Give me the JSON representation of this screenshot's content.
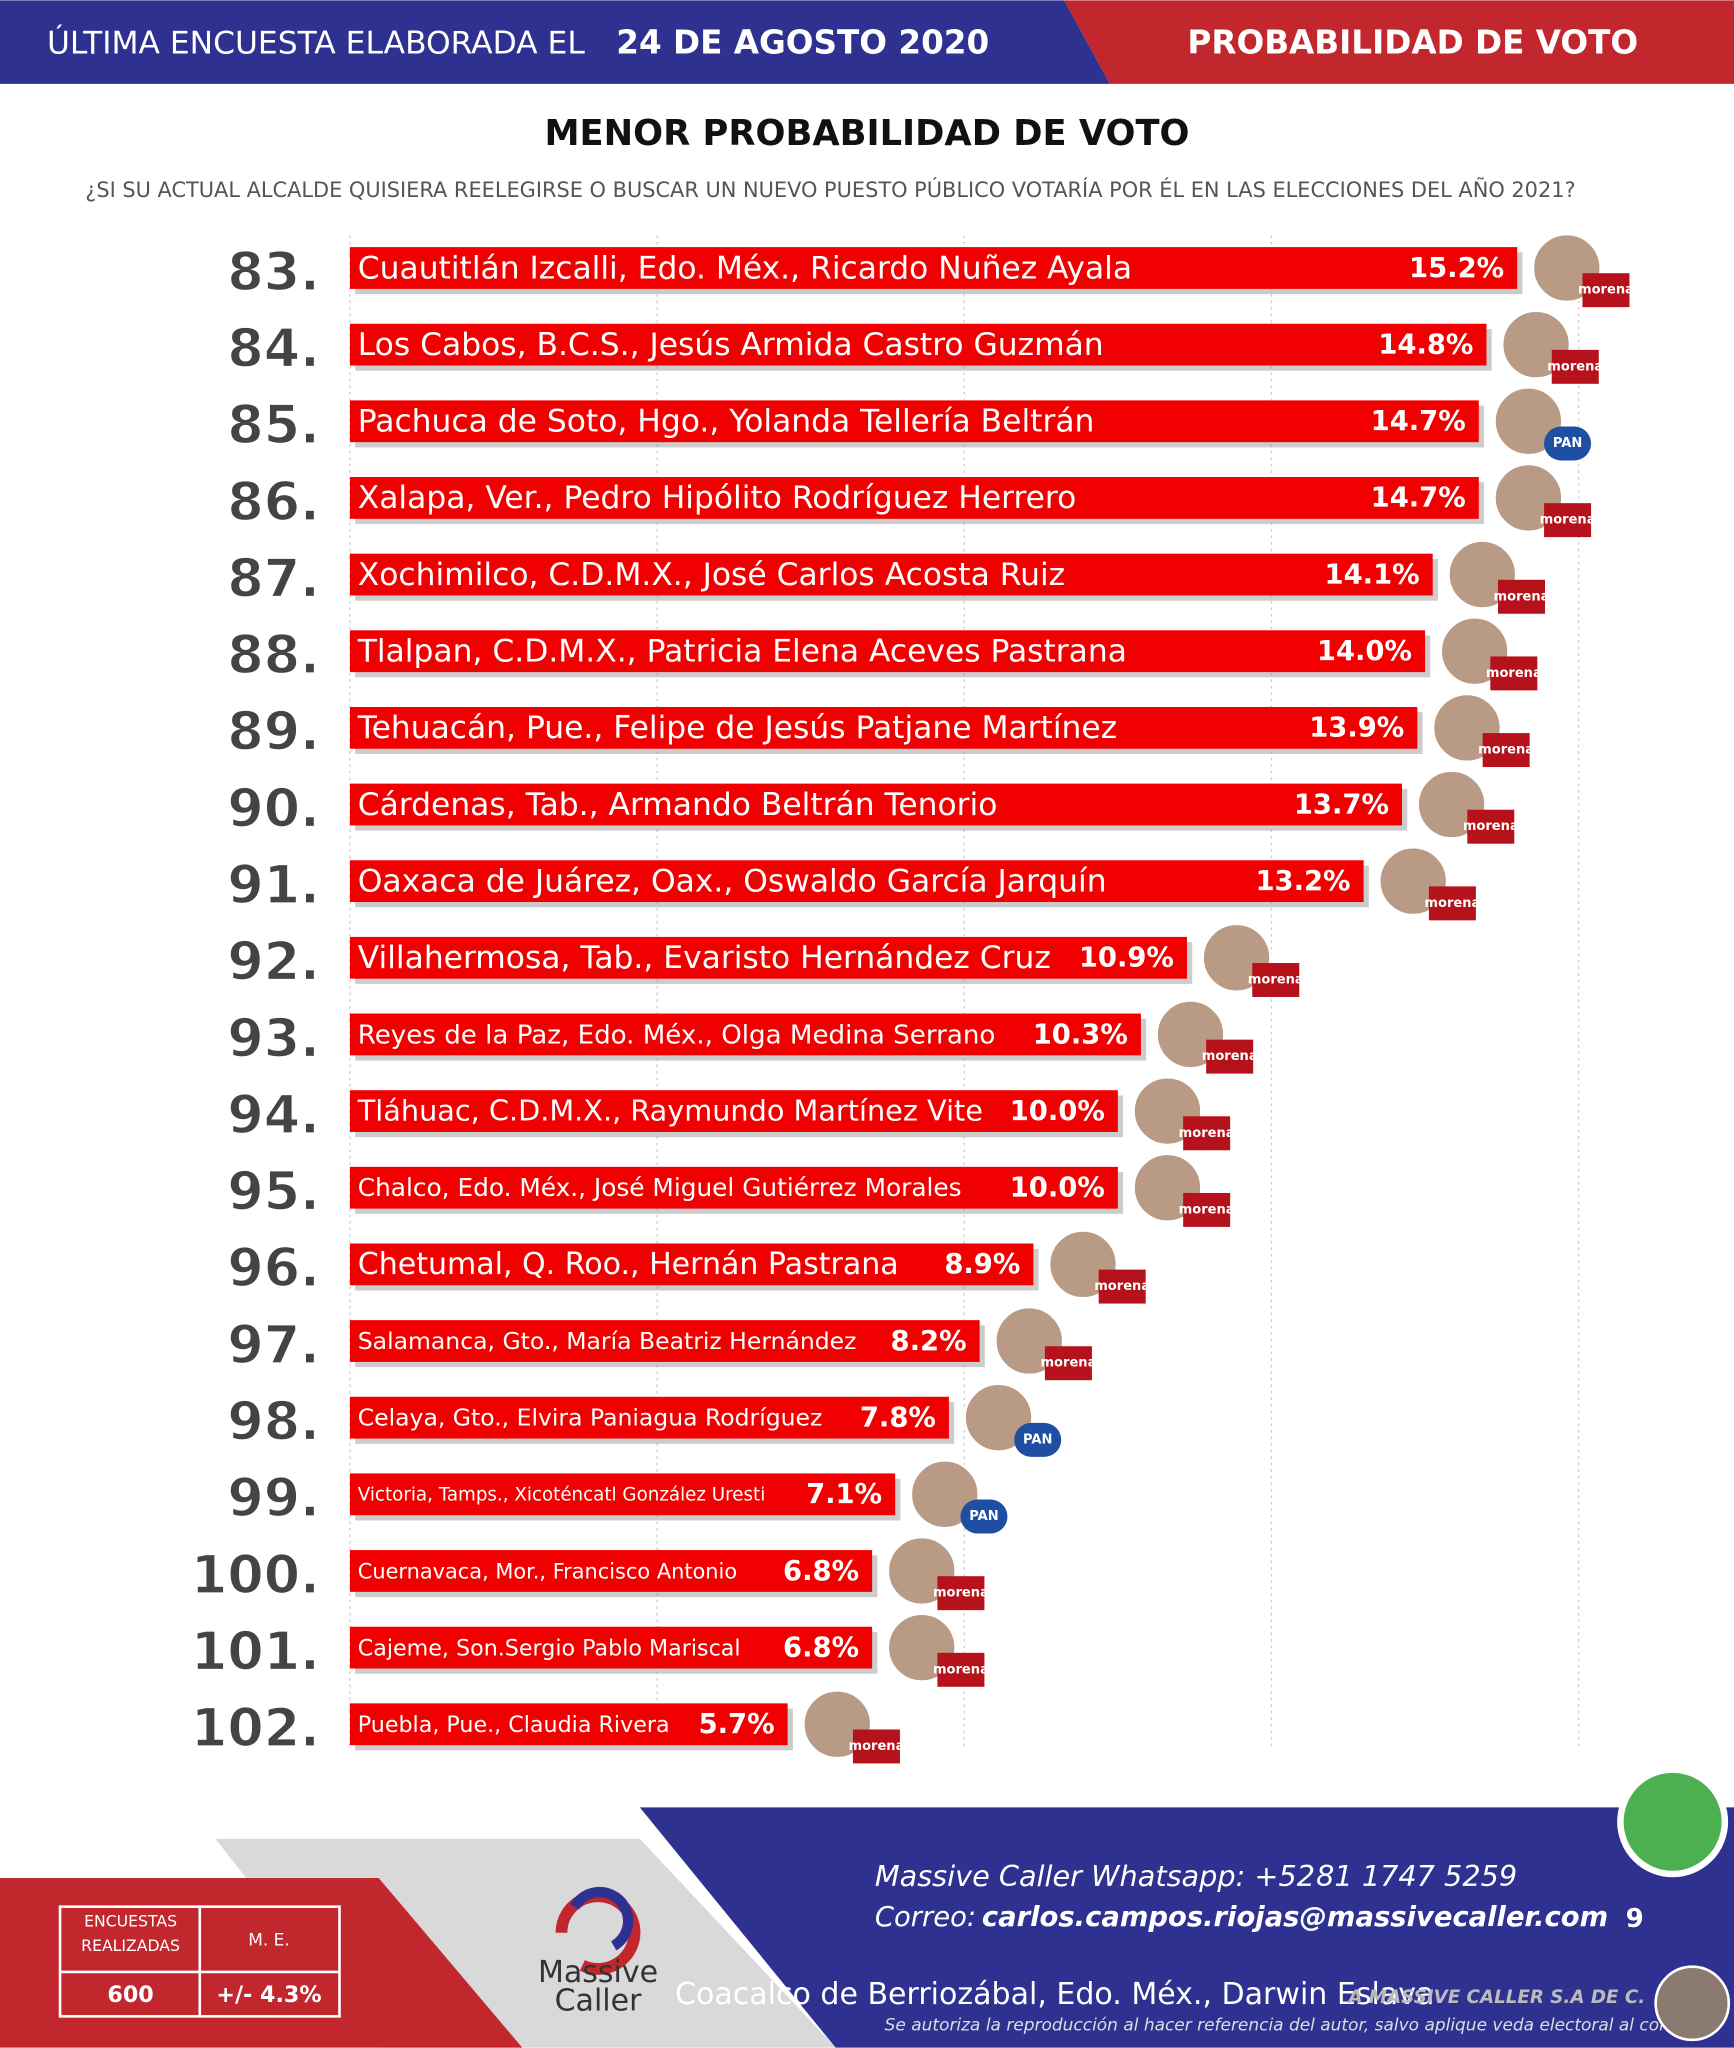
{
  "header": {
    "survey_label": "ÚLTIMA ENCUESTA ELABORADA EL",
    "survey_date": "24 DE AGOSTO 2020",
    "section": "PROBABILIDAD DE VOTO"
  },
  "chart_data": {
    "type": "bar",
    "orientation": "horizontal",
    "title": "MENOR PROBABILIDAD DE VOTO",
    "subtitle": "¿SI SU ACTUAL ALCALDE QUISIERA REELEGIRSE O BUSCAR UN NUEVO PUESTO PÚBLICO VOTARÍA POR ÉL EN LAS ELECCIONES DEL AÑO 2021?",
    "ranks": [
      "83.",
      "84.",
      "85.",
      "86.",
      "87.",
      "88.",
      "89.",
      "90.",
      "91.",
      "92.",
      "93.",
      "94.",
      "95.",
      "96.",
      "97.",
      "98.",
      "99.",
      "100.",
      "101.",
      "102."
    ],
    "categories": [
      "Cuautitlán Izcalli, Edo. Méx., Ricardo Nuñez Ayala",
      "Los Cabos, B.C.S., Jesús Armida Castro Guzmán",
      "Pachuca de Soto, Hgo., Yolanda Tellería Beltrán",
      "Xalapa, Ver., Pedro Hipólito Rodríguez Herrero",
      "Xochimilco, C.D.M.X., José Carlos Acosta Ruiz",
      "Tlalpan, C.D.M.X., Patricia Elena Aceves Pastrana",
      "Tehuacán, Pue., Felipe de Jesús Patjane Martínez",
      "Cárdenas, Tab., Armando Beltrán Tenorio",
      "Oaxaca de Juárez, Oax., Oswaldo García Jarquín",
      "Villahermosa, Tab., Evaristo Hernández Cruz",
      "Reyes de la Paz, Edo. Méx., Olga Medina Serrano",
      "Tláhuac, C.D.M.X., Raymundo Martínez Vite",
      "Chalco, Edo. Méx., José Miguel Gutiérrez Morales",
      "Chetumal, Q. Roo., Hernán Pastrana",
      "Salamanca, Gto., María Beatriz Hernández",
      "Celaya, Gto., Elvira Paniagua Rodríguez",
      "Victoria, Tamps., Xicoténcatl González Uresti",
      "Cuernavaca, Mor., Francisco Antonio",
      "Cajeme, Son.Sergio Pablo Mariscal",
      "Puebla, Pue., Claudia Rivera"
    ],
    "values": [
      15.2,
      14.8,
      14.7,
      14.7,
      14.1,
      14.0,
      13.9,
      13.7,
      13.2,
      10.9,
      10.3,
      10.0,
      10.0,
      8.9,
      8.2,
      7.8,
      7.1,
      6.8,
      6.8,
      5.7
    ],
    "value_labels": [
      "15.2%",
      "14.8%",
      "14.7%",
      "14.7%",
      "14.1%",
      "14.0%",
      "13.9%",
      "13.7%",
      "13.2%",
      "10.9%",
      "10.3%",
      "10.0%",
      "10.0%",
      "8.9%",
      "8.2%",
      "7.8%",
      "7.1%",
      "6.8%",
      "6.8%",
      "5.7%"
    ],
    "parties": [
      "morena",
      "morena",
      "PAN",
      "morena",
      "morena",
      "morena",
      "morena",
      "morena",
      "morena",
      "morena",
      "morena",
      "morena",
      "morena",
      "morena",
      "morena",
      "PAN",
      "PAN",
      "morena",
      "morena",
      "morena"
    ],
    "color": "#f00000",
    "xlim": [
      0,
      16
    ],
    "xticks": [
      0,
      4,
      8,
      12,
      16
    ],
    "grid": true
  },
  "footer": {
    "surveys_label": "ENCUESTAS REALIZADAS",
    "margin_label": "M. E.",
    "surveys": "600",
    "margin": "+/- 4.3%",
    "brand_top": "Massive",
    "brand_bottom": "Caller",
    "whatsapp_label": "Massive Caller Whatsapp: +52",
    "whatsapp_number": "81 1747 5259",
    "email_label": "Correo:",
    "email": "carlos.campos.riojas@massivecaller.com",
    "page": "9",
    "caption": "Coacalco de Berriozábal, Edo. Méx., Darwin Eslava",
    "company": "A MASSIVE CALLER S.A DE C.",
    "notice": "Se autoriza la reproducción al hacer referencia del autor, salvo aplique veda electoral al cor"
  }
}
